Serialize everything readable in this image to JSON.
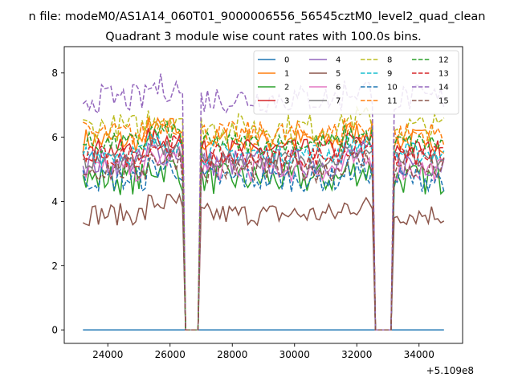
{
  "chart_data": {
    "type": "line",
    "suptitle": "n file: modeM0/AS1A14_060T01_9000006556_56545cztM0_level2_quad_clean",
    "title": "Quadrant 3 module wise count rates with 100.0s bins.",
    "xlabel": "",
    "ylabel": "",
    "offset_label": "+5.109e8",
    "xlim": [
      22600,
      35400
    ],
    "ylim": [
      -0.42,
      8.82
    ],
    "xticks": [
      24000,
      26000,
      28000,
      30000,
      32000,
      34000
    ],
    "xtick_labels": [
      "24000",
      "26000",
      "28000",
      "30000",
      "32000",
      "34000"
    ],
    "yticks": [
      0,
      2,
      4,
      6,
      8
    ],
    "ytick_labels": [
      "0",
      "2",
      "4",
      "6",
      "8"
    ],
    "grid": false,
    "legend_location": "upper right",
    "legend_columns": 4,
    "x_range": [
      23200,
      34800
    ],
    "bin_step": 100,
    "gaps": [
      [
        26450,
        26900
      ],
      [
        32600,
        33150
      ]
    ],
    "series": [
      {
        "name": "0",
        "color": "#1f77b4",
        "dash": "solid",
        "base": 0.0,
        "amp": 0.0
      },
      {
        "name": "1",
        "color": "#ff7f0e",
        "dash": "solid",
        "base": 5.9,
        "amp": 0.4
      },
      {
        "name": "2",
        "color": "#2ca02c",
        "dash": "solid",
        "base": 4.7,
        "amp": 0.5
      },
      {
        "name": "3",
        "color": "#d62728",
        "dash": "solid",
        "base": 5.6,
        "amp": 0.35
      },
      {
        "name": "4",
        "color": "#9467bd",
        "dash": "solid",
        "base": 5.2,
        "amp": 0.45
      },
      {
        "name": "5",
        "color": "#8c564b",
        "dash": "solid",
        "base": 3.6,
        "amp": 0.35
      },
      {
        "name": "6",
        "color": "#e377c2",
        "dash": "solid",
        "base": 5.0,
        "amp": 0.4
      },
      {
        "name": "7",
        "color": "#7f7f7f",
        "dash": "solid",
        "base": 5.3,
        "amp": 0.3
      },
      {
        "name": "8",
        "color": "#bcbd22",
        "dash": "dashed",
        "base": 6.3,
        "amp": 0.45
      },
      {
        "name": "9",
        "color": "#17becf",
        "dash": "dashed",
        "base": 5.5,
        "amp": 0.35
      },
      {
        "name": "10",
        "color": "#1f77b4",
        "dash": "dashed",
        "base": 4.7,
        "amp": 0.4
      },
      {
        "name": "11",
        "color": "#ff7f0e",
        "dash": "dashed",
        "base": 6.1,
        "amp": 0.4
      },
      {
        "name": "12",
        "color": "#2ca02c",
        "dash": "dashed",
        "base": 5.8,
        "amp": 0.35
      },
      {
        "name": "13",
        "color": "#d62728",
        "dash": "dashed",
        "base": 5.4,
        "amp": 0.35
      },
      {
        "name": "14",
        "color": "#9467bd",
        "dash": "dashed",
        "base": 7.2,
        "amp": 0.45
      },
      {
        "name": "15",
        "color": "#8c564b",
        "dash": "dashed",
        "base": 5.0,
        "amp": 0.4
      }
    ]
  }
}
